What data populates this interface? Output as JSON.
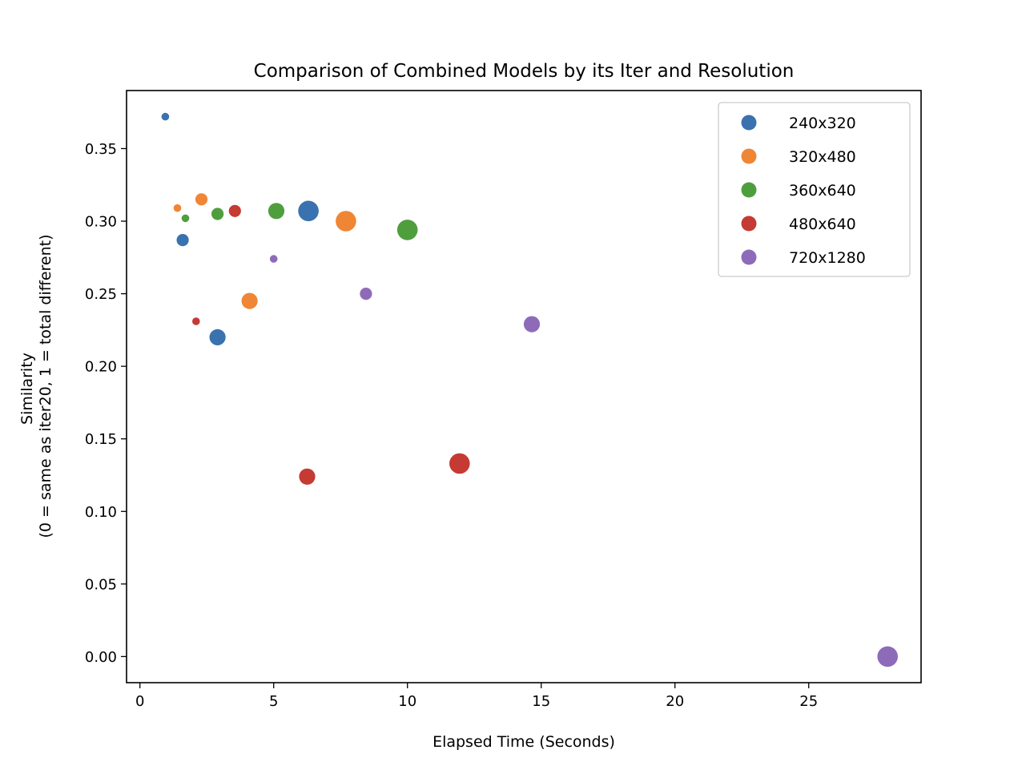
{
  "chart_data": {
    "type": "scatter",
    "title": "Comparison of Combined Models by its Iter and Resolution",
    "xlabel": "Elapsed Time (Seconds)",
    "ylabel_lines": [
      "Similarity",
      "(0 = same as iter20, 1 = total different)"
    ],
    "xlim": [
      -0.5,
      29.2
    ],
    "ylim": [
      -0.018,
      0.39
    ],
    "xticks": [
      0,
      5,
      10,
      15,
      20,
      25
    ],
    "yticks": [
      "0.00",
      "0.05",
      "0.10",
      "0.15",
      "0.20",
      "0.25",
      "0.30",
      "0.35"
    ],
    "grid": false,
    "legend_position": "top-right",
    "series": [
      {
        "name": "240x320",
        "color": "#3a72b0",
        "points": [
          {
            "x": 0.95,
            "y": 0.372,
            "size": 1
          },
          {
            "x": 1.6,
            "y": 0.287,
            "size": 2
          },
          {
            "x": 2.9,
            "y": 0.22,
            "size": 3
          },
          {
            "x": 6.3,
            "y": 0.307,
            "size": 4
          }
        ]
      },
      {
        "name": "320x480",
        "color": "#ef8636",
        "points": [
          {
            "x": 1.4,
            "y": 0.309,
            "size": 1
          },
          {
            "x": 2.3,
            "y": 0.315,
            "size": 2
          },
          {
            "x": 4.1,
            "y": 0.245,
            "size": 3
          },
          {
            "x": 7.7,
            "y": 0.3,
            "size": 4
          }
        ]
      },
      {
        "name": "360x640",
        "color": "#4f9e3e",
        "points": [
          {
            "x": 1.7,
            "y": 0.302,
            "size": 1
          },
          {
            "x": 2.9,
            "y": 0.305,
            "size": 2
          },
          {
            "x": 5.1,
            "y": 0.307,
            "size": 3
          },
          {
            "x": 10.0,
            "y": 0.294,
            "size": 4
          }
        ]
      },
      {
        "name": "480x640",
        "color": "#c53a32",
        "points": [
          {
            "x": 2.1,
            "y": 0.231,
            "size": 1
          },
          {
            "x": 3.55,
            "y": 0.307,
            "size": 2
          },
          {
            "x": 6.25,
            "y": 0.124,
            "size": 3
          },
          {
            "x": 11.95,
            "y": 0.133,
            "size": 4
          }
        ]
      },
      {
        "name": "720x1280",
        "color": "#8e6bb8",
        "points": [
          {
            "x": 5.0,
            "y": 0.274,
            "size": 1
          },
          {
            "x": 8.45,
            "y": 0.25,
            "size": 2
          },
          {
            "x": 14.65,
            "y": 0.229,
            "size": 3
          },
          {
            "x": 27.95,
            "y": 0.0,
            "size": 4
          }
        ]
      }
    ]
  }
}
